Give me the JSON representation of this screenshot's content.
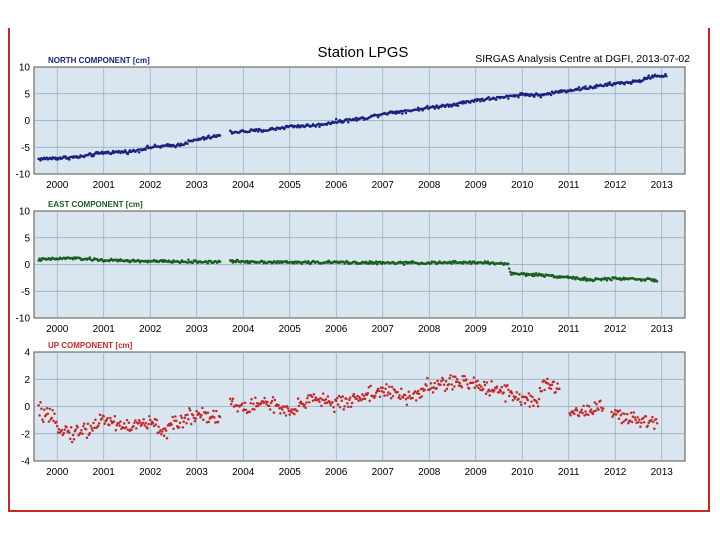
{
  "title": "Station LPGS",
  "source": "SIRGAS Analysis Centre at DGFI, 2013-07-02",
  "colors": {
    "panel_bg": "#d9e6ef",
    "grid": "#8fa9bd",
    "frame": "#c62828",
    "north": "#1a237e",
    "east": "#1b5e20",
    "up": "#c62828"
  },
  "chart_data": [
    {
      "type": "scatter",
      "title": "NORTH COMPONENT [cm]",
      "xlim": [
        1999.5,
        2013.5
      ],
      "ylim": [
        -10,
        10
      ],
      "yticks": [
        -10,
        -5,
        0,
        5,
        10
      ],
      "xticks": [
        2000,
        2001,
        2002,
        2003,
        2004,
        2005,
        2006,
        2007,
        2008,
        2009,
        2010,
        2011,
        2012,
        2013
      ],
      "gaps": [
        [
          2003.5,
          2003.7
        ]
      ],
      "noise": 0.25,
      "step": 0.02,
      "series": [
        {
          "name": "north",
          "color": "#1a237e",
          "x": [
            1999.6,
            2000.5,
            2001.0,
            2001.6,
            2002.0,
            2002.6,
            2003.0,
            2003.5,
            2003.7,
            2004.5,
            2005.0,
            2005.6,
            2006.0,
            2006.6,
            2007.0,
            2007.6,
            2008.0,
            2008.6,
            2009.0,
            2009.6,
            2010.0,
            2010.4,
            2010.8,
            2011.4,
            2012.0,
            2012.5,
            2012.8,
            2013.1
          ],
          "y": [
            -7.2,
            -6.8,
            -6.0,
            -5.8,
            -5.0,
            -4.6,
            -3.6,
            -2.8,
            -2.2,
            -1.8,
            -1.1,
            -0.9,
            -0.2,
            0.4,
            1.3,
            1.9,
            2.4,
            3.1,
            3.8,
            4.3,
            4.9,
            4.7,
            5.4,
            6.1,
            6.9,
            7.3,
            8.3,
            8.4
          ]
        }
      ]
    },
    {
      "type": "scatter",
      "title": "EAST COMPONENT [cm]",
      "xlim": [
        1999.5,
        2013.5
      ],
      "ylim": [
        -10,
        10
      ],
      "yticks": [
        -10,
        -5,
        0,
        5,
        10
      ],
      "xticks": [
        2000,
        2001,
        2002,
        2003,
        2004,
        2005,
        2006,
        2007,
        2008,
        2009,
        2010,
        2011,
        2012,
        2013
      ],
      "gaps": [
        [
          2003.5,
          2003.7
        ]
      ],
      "noise": 0.2,
      "step": 0.02,
      "series": [
        {
          "name": "east",
          "color": "#1b5e20",
          "x": [
            1999.6,
            2000.3,
            2001.0,
            2002.0,
            2003.0,
            2003.5,
            2003.7,
            2005.0,
            2006.0,
            2007.0,
            2008.0,
            2009.0,
            2009.7,
            2009.75,
            2010.5,
            2011.0,
            2011.5,
            2012.0,
            2012.5,
            2012.9
          ],
          "y": [
            0.9,
            1.2,
            0.8,
            0.6,
            0.5,
            0.5,
            0.6,
            0.4,
            0.4,
            0.3,
            0.3,
            0.4,
            0.1,
            -1.7,
            -2.0,
            -2.4,
            -2.9,
            -2.6,
            -2.7,
            -3.0
          ]
        }
      ]
    },
    {
      "type": "scatter",
      "title": "UP COMPONENT [cm]",
      "xlim": [
        1999.5,
        2013.5
      ],
      "ylim": [
        -4,
        4
      ],
      "yticks": [
        -4,
        -2,
        0,
        2,
        4
      ],
      "xticks": [
        2000,
        2001,
        2002,
        2003,
        2004,
        2005,
        2006,
        2007,
        2008,
        2009,
        2010,
        2011,
        2012,
        2013
      ],
      "gaps": [
        [
          2003.5,
          2003.7
        ],
        [
          2010.8,
          2011.0
        ],
        [
          2011.75,
          2011.9
        ]
      ],
      "noise": 0.45,
      "step": 0.02,
      "series": [
        {
          "name": "up",
          "color": "#c62828",
          "x": [
            1999.6,
            2000.0,
            2000.3,
            2000.7,
            2001.0,
            2001.5,
            2002.0,
            2002.3,
            2002.7,
            2003.0,
            2003.4,
            2003.5,
            2003.7,
            2004.0,
            2004.5,
            2005.0,
            2005.5,
            2006.0,
            2006.5,
            2007.0,
            2007.5,
            2008.0,
            2008.5,
            2009.0,
            2009.5,
            2010.0,
            2010.3,
            2010.5,
            2010.8,
            2011.0,
            2011.5,
            2011.75,
            2011.9,
            2012.0,
            2012.5,
            2012.9
          ],
          "y": [
            -0.3,
            -1.3,
            -2.0,
            -1.6,
            -0.9,
            -1.5,
            -1.2,
            -1.8,
            -1.0,
            -0.5,
            -0.7,
            -0.7,
            0.3,
            -0.2,
            0.4,
            -0.6,
            0.8,
            0.1,
            0.7,
            1.2,
            0.6,
            1.4,
            1.8,
            1.6,
            1.3,
            0.6,
            0.3,
            1.6,
            1.4,
            -0.5,
            -0.2,
            0.2,
            -0.4,
            -0.7,
            -1.1,
            -1.1
          ]
        }
      ]
    }
  ]
}
